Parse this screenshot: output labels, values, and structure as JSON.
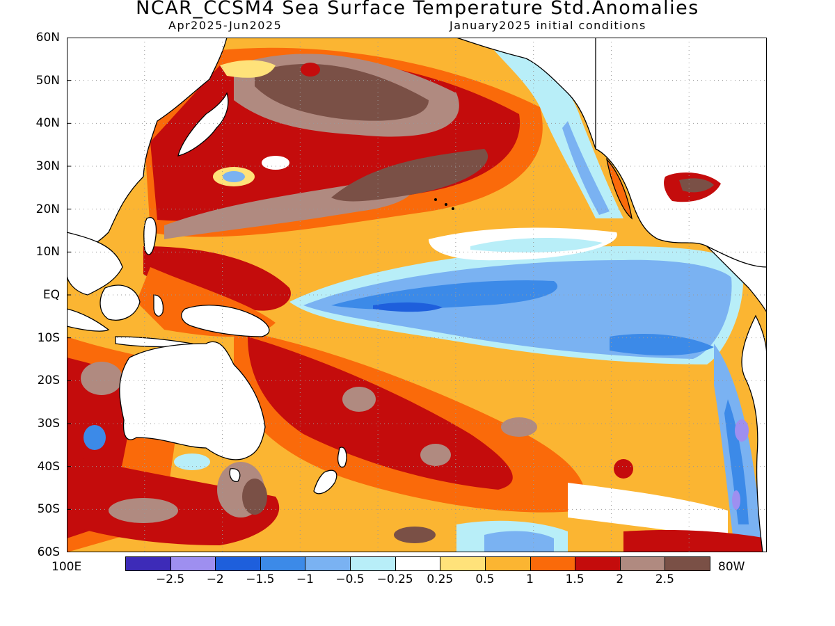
{
  "title": "NCAR_CCSM4 Sea Surface Temperature Std.Anomalies",
  "period": "Apr2025-Jun2025",
  "init": "January2025 initial conditions",
  "lat_labels": [
    "60N",
    "50N",
    "40N",
    "30N",
    "20N",
    "10N",
    "EQ",
    "10S",
    "20S",
    "30S",
    "40S",
    "50S",
    "60S"
  ],
  "lon_left_label": "100E",
  "lon_right_label": "80W",
  "colorbar": {
    "colors": [
      "#3d2bb8",
      "#9e8ff0",
      "#1e5fdc",
      "#3c8ae8",
      "#7ab2f2",
      "#b8eef8",
      "#ffffff",
      "#ffe27a",
      "#fbb532",
      "#fa6a0a",
      "#c40c0c",
      "#b08a80",
      "#7a5046"
    ],
    "tick_labels": [
      "-2.5",
      "-2",
      "-1.5",
      "-1",
      "-0.5",
      "-0.25",
      "0.25",
      "0.5",
      "1",
      "1.5",
      "2",
      "2.5"
    ]
  },
  "colors": {
    "land": "#ffffff",
    "ocean_warm": "#fbb532",
    "ocean_cold": "#7ab2f2"
  }
}
